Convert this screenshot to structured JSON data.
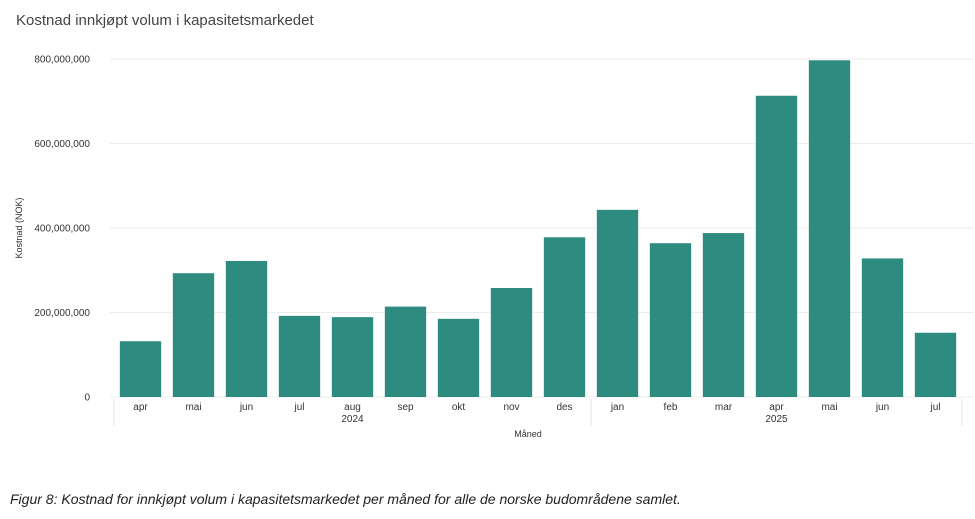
{
  "chart_data": {
    "type": "bar",
    "title": "Kostnad innkjøpt volum i kapasitetsmarkedet",
    "xlabel": "Måned",
    "ylabel": "Kostnad (NOK)",
    "ylim": [
      0,
      800000000
    ],
    "yticks": [
      0,
      200000000,
      400000000,
      600000000,
      800000000
    ],
    "ytick_labels": [
      "0",
      "200,000,000",
      "400,000,000",
      "600,000,000",
      "800,000,000"
    ],
    "categories": [
      "apr",
      "mai",
      "jun",
      "jul",
      "aug",
      "sep",
      "okt",
      "nov",
      "des",
      "jan",
      "feb",
      "mar",
      "apr",
      "mai",
      "jun",
      "jul"
    ],
    "year_groups": [
      {
        "label": "2024",
        "start": 0,
        "end": 8
      },
      {
        "label": "2025",
        "start": 9,
        "end": 15
      }
    ],
    "values": [
      132000000,
      293000000,
      322000000,
      192000000,
      189000000,
      214000000,
      185000000,
      258000000,
      378000000,
      443000000,
      364000000,
      388000000,
      713000000,
      797000000,
      328000000,
      152000000
    ],
    "bar_color": "#2e8b80",
    "grid": true,
    "legend": "none"
  },
  "caption": "Figur 8: Kostnad for innkjøpt volum i kapasitetsmarkedet per måned for alle de norske budområdene samlet."
}
